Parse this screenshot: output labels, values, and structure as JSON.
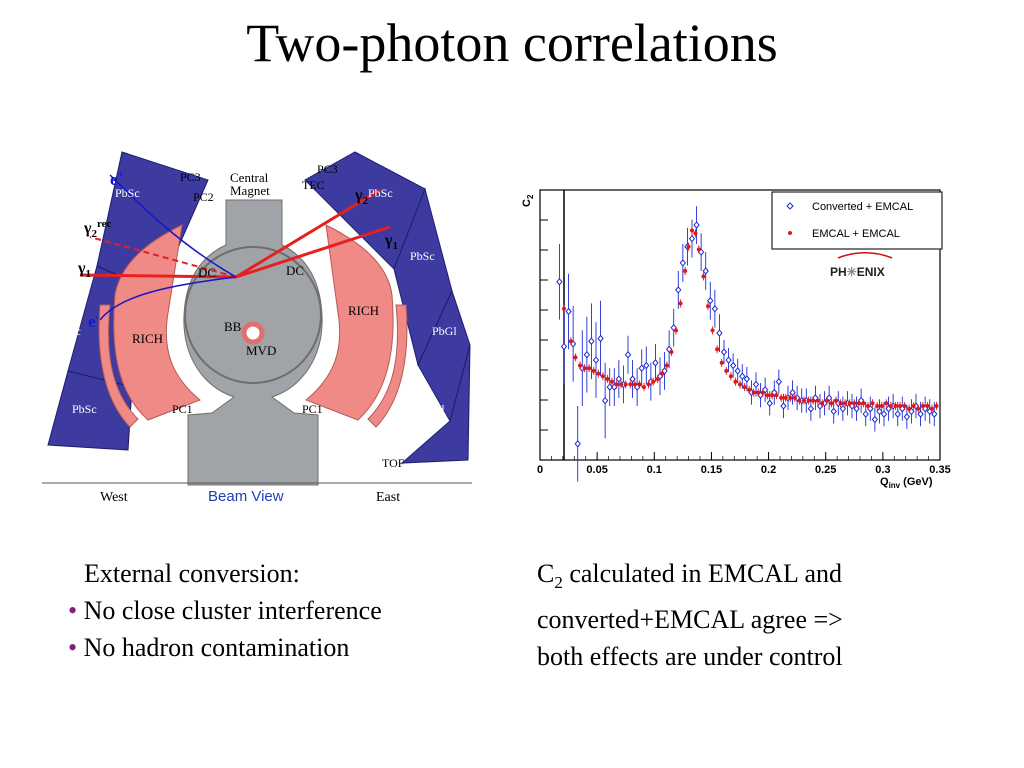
{
  "slide": {
    "title": "Two-photon correlations"
  },
  "detector": {
    "colors": {
      "arm": "#3d3ba0",
      "rich": "#ef8a86",
      "magnet": "#a0a4a8",
      "track": "#e6201e",
      "electron": "#1616c8"
    },
    "labels": {
      "pbsc": "PbSc",
      "pbgl": "PbGl",
      "pc1": "PC1",
      "pc2": "PC2",
      "pc3": "PC3",
      "tec": "TEC",
      "tof": "TOF",
      "dc": "DC",
      "rich": "RICH",
      "bb": "BB",
      "mvd": "MVD",
      "magnet_line1": "Central",
      "magnet_line2": "Magnet",
      "west": "West",
      "east": "East",
      "beam_view": "Beam View",
      "gamma": "γ",
      "sub1": "1",
      "sub2": "2",
      "sup_rec": "rec",
      "e_plus": "e",
      "plus": "+",
      "e_minus": "e",
      "minus": "-"
    }
  },
  "chart_data": {
    "type": "scatter",
    "ylabel": "C2",
    "xlabel": "Qinv (GeV)",
    "xlim": [
      0,
      0.35
    ],
    "x_ticks": [
      "0",
      "0.05",
      "0.1",
      "0.15",
      "0.2",
      "0.25",
      "0.3",
      "0.35"
    ],
    "y_tick_labels": "none",
    "grid": false,
    "legend_position": "top-right",
    "logo": "PHENIX",
    "series": [
      {
        "name": "Converted + EMCAL",
        "color": "#1a2bd6",
        "marker": "open-diamond",
        "points": [
          [
            0.017,
            0.66
          ],
          [
            0.021,
            0.42
          ],
          [
            0.025,
            0.55
          ],
          [
            0.029,
            0.43
          ],
          [
            0.033,
            0.06
          ],
          [
            0.037,
            0.34
          ],
          [
            0.041,
            0.39
          ],
          [
            0.045,
            0.44
          ],
          [
            0.049,
            0.37
          ],
          [
            0.053,
            0.45
          ],
          [
            0.057,
            0.22
          ],
          [
            0.061,
            0.27
          ],
          [
            0.065,
            0.27
          ],
          [
            0.069,
            0.3
          ],
          [
            0.073,
            0.28
          ],
          [
            0.077,
            0.39
          ],
          [
            0.081,
            0.3
          ],
          [
            0.085,
            0.27
          ],
          [
            0.089,
            0.34
          ],
          [
            0.093,
            0.35
          ],
          [
            0.097,
            0.29
          ],
          [
            0.101,
            0.36
          ],
          [
            0.105,
            0.31
          ],
          [
            0.109,
            0.33
          ],
          [
            0.113,
            0.41
          ],
          [
            0.117,
            0.49
          ],
          [
            0.121,
            0.63
          ],
          [
            0.125,
            0.73
          ],
          [
            0.129,
            0.79
          ],
          [
            0.133,
            0.82
          ],
          [
            0.137,
            0.87
          ],
          [
            0.141,
            0.77
          ],
          [
            0.145,
            0.7
          ],
          [
            0.149,
            0.59
          ],
          [
            0.153,
            0.56
          ],
          [
            0.157,
            0.47
          ],
          [
            0.161,
            0.4
          ],
          [
            0.165,
            0.37
          ],
          [
            0.169,
            0.35
          ],
          [
            0.173,
            0.33
          ],
          [
            0.177,
            0.31
          ],
          [
            0.181,
            0.3
          ],
          [
            0.185,
            0.25
          ],
          [
            0.189,
            0.28
          ],
          [
            0.193,
            0.24
          ],
          [
            0.197,
            0.26
          ],
          [
            0.201,
            0.21
          ],
          [
            0.205,
            0.25
          ],
          [
            0.209,
            0.29
          ],
          [
            0.213,
            0.2
          ],
          [
            0.217,
            0.23
          ],
          [
            0.221,
            0.25
          ],
          [
            0.225,
            0.23
          ],
          [
            0.229,
            0.22
          ],
          [
            0.233,
            0.22
          ],
          [
            0.237,
            0.19
          ],
          [
            0.241,
            0.23
          ],
          [
            0.245,
            0.2
          ],
          [
            0.249,
            0.21
          ],
          [
            0.253,
            0.23
          ],
          [
            0.257,
            0.18
          ],
          [
            0.261,
            0.21
          ],
          [
            0.265,
            0.19
          ],
          [
            0.269,
            0.21
          ],
          [
            0.273,
            0.2
          ],
          [
            0.277,
            0.19
          ],
          [
            0.281,
            0.22
          ],
          [
            0.285,
            0.17
          ],
          [
            0.289,
            0.19
          ],
          [
            0.293,
            0.15
          ],
          [
            0.297,
            0.18
          ],
          [
            0.301,
            0.17
          ],
          [
            0.305,
            0.19
          ],
          [
            0.309,
            0.2
          ],
          [
            0.313,
            0.17
          ],
          [
            0.317,
            0.19
          ],
          [
            0.321,
            0.16
          ],
          [
            0.325,
            0.18
          ],
          [
            0.329,
            0.2
          ],
          [
            0.333,
            0.17
          ],
          [
            0.337,
            0.19
          ],
          [
            0.341,
            0.18
          ],
          [
            0.345,
            0.17
          ]
        ]
      },
      {
        "name": "EMCAL + EMCAL",
        "color": "#e21616",
        "marker": "filled-circle",
        "points": [
          [
            0.021,
            0.56
          ],
          [
            0.027,
            0.44
          ],
          [
            0.031,
            0.38
          ],
          [
            0.035,
            0.35
          ],
          [
            0.039,
            0.34
          ],
          [
            0.043,
            0.34
          ],
          [
            0.047,
            0.33
          ],
          [
            0.051,
            0.32
          ],
          [
            0.055,
            0.31
          ],
          [
            0.059,
            0.3
          ],
          [
            0.063,
            0.29
          ],
          [
            0.067,
            0.28
          ],
          [
            0.071,
            0.28
          ],
          [
            0.075,
            0.28
          ],
          [
            0.079,
            0.28
          ],
          [
            0.083,
            0.28
          ],
          [
            0.087,
            0.28
          ],
          [
            0.091,
            0.27
          ],
          [
            0.095,
            0.28
          ],
          [
            0.099,
            0.29
          ],
          [
            0.103,
            0.3
          ],
          [
            0.107,
            0.32
          ],
          [
            0.111,
            0.35
          ],
          [
            0.115,
            0.4
          ],
          [
            0.119,
            0.48
          ],
          [
            0.123,
            0.58
          ],
          [
            0.127,
            0.7
          ],
          [
            0.13,
            0.79
          ],
          [
            0.133,
            0.85
          ],
          [
            0.136,
            0.84
          ],
          [
            0.139,
            0.78
          ],
          [
            0.143,
            0.68
          ],
          [
            0.147,
            0.57
          ],
          [
            0.151,
            0.48
          ],
          [
            0.155,
            0.41
          ],
          [
            0.159,
            0.36
          ],
          [
            0.163,
            0.33
          ],
          [
            0.167,
            0.31
          ],
          [
            0.171,
            0.29
          ],
          [
            0.175,
            0.28
          ],
          [
            0.179,
            0.27
          ],
          [
            0.183,
            0.26
          ],
          [
            0.187,
            0.25
          ],
          [
            0.191,
            0.25
          ],
          [
            0.195,
            0.25
          ],
          [
            0.199,
            0.24
          ],
          [
            0.203,
            0.24
          ],
          [
            0.207,
            0.24
          ],
          [
            0.211,
            0.23
          ],
          [
            0.215,
            0.23
          ],
          [
            0.219,
            0.23
          ],
          [
            0.223,
            0.23
          ],
          [
            0.227,
            0.22
          ],
          [
            0.231,
            0.22
          ],
          [
            0.235,
            0.22
          ],
          [
            0.239,
            0.22
          ],
          [
            0.243,
            0.22
          ],
          [
            0.247,
            0.21
          ],
          [
            0.251,
            0.22
          ],
          [
            0.255,
            0.21
          ],
          [
            0.259,
            0.22
          ],
          [
            0.263,
            0.21
          ],
          [
            0.267,
            0.21
          ],
          [
            0.271,
            0.21
          ],
          [
            0.275,
            0.21
          ],
          [
            0.279,
            0.21
          ],
          [
            0.283,
            0.21
          ],
          [
            0.287,
            0.2
          ],
          [
            0.291,
            0.21
          ],
          [
            0.295,
            0.2
          ],
          [
            0.299,
            0.2
          ],
          [
            0.303,
            0.21
          ],
          [
            0.307,
            0.2
          ],
          [
            0.311,
            0.2
          ],
          [
            0.315,
            0.2
          ],
          [
            0.319,
            0.2
          ],
          [
            0.323,
            0.19
          ],
          [
            0.327,
            0.2
          ],
          [
            0.331,
            0.19
          ],
          [
            0.335,
            0.2
          ],
          [
            0.339,
            0.2
          ],
          [
            0.343,
            0.19
          ],
          [
            0.347,
            0.2
          ]
        ]
      }
    ]
  },
  "notes": {
    "left_heading": "External conversion:",
    "left_items": [
      "No close cluster interference",
      "No hadron contamination"
    ],
    "right_c": "C",
    "right_sub": "2",
    "right_line1_rest": " calculated in EMCAL and",
    "right_line2": "converted+EMCAL agree =>",
    "right_line3": "both effects are under control"
  }
}
